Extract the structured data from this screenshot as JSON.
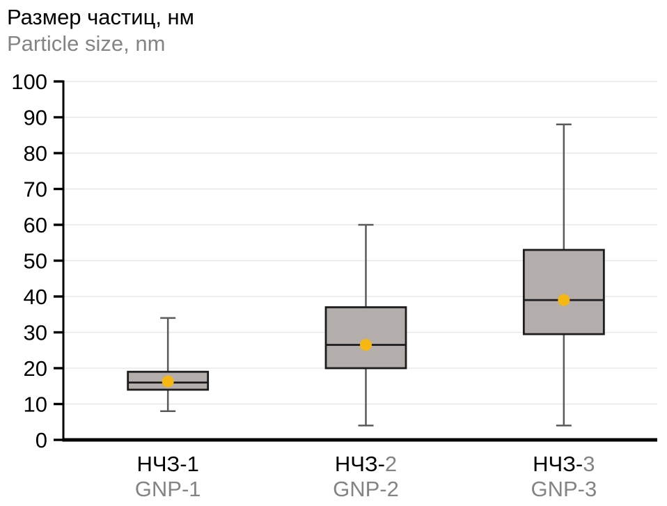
{
  "title": {
    "line1": "Размер частиц, нм",
    "line2": "Particle size, nm"
  },
  "colors": {
    "title_primary": "#000000",
    "title_secondary": "#848484",
    "box_fill": "#b3aeab",
    "box_border": "#1c1c1c",
    "median_line": "#1c1c1c",
    "whisker": "#5a5a5a",
    "mean_dot": "#f7b712",
    "gridline": "#e8e8e8",
    "axis": "#000000",
    "tick_label": "#000000",
    "label_gray": "#848484"
  },
  "chart_data": {
    "type": "box",
    "title": "Размер частиц, нм / Particle size, nm",
    "ylabel": "Размер частиц, нм (Particle size, nm)",
    "xlabel": "",
    "ylim": [
      0,
      100
    ],
    "ytick_step": 10,
    "grid": true,
    "legend_position": "none",
    "categories": [
      {
        "label_ru": "НЧЗ-1",
        "label_en": "GNP-1",
        "ru_prefix": "НЧЗ-",
        "ru_digit": "1",
        "ru_digit_gray": false
      },
      {
        "label_ru": "НЧЗ-2",
        "label_en": "GNP-2",
        "ru_prefix": "НЧЗ-",
        "ru_digit": "2",
        "ru_digit_gray": true
      },
      {
        "label_ru": "НЧЗ-3",
        "label_en": "GNP-3",
        "ru_prefix": "НЧЗ-",
        "ru_digit": "3",
        "ru_digit_gray": true
      }
    ],
    "series": [
      {
        "name": "НЧЗ-1 / GNP-1",
        "min": 8,
        "q1": 14,
        "median": 16,
        "q3": 19,
        "max": 34,
        "mean": 16.3
      },
      {
        "name": "НЧЗ-2 / GNP-2",
        "min": 4,
        "q1": 20,
        "median": 26.5,
        "q3": 37,
        "max": 60,
        "mean": 26.5
      },
      {
        "name": "НЧЗ-3 / GNP-3",
        "min": 4,
        "q1": 29.5,
        "median": 39,
        "q3": 53,
        "max": 88,
        "mean": 39
      }
    ]
  }
}
